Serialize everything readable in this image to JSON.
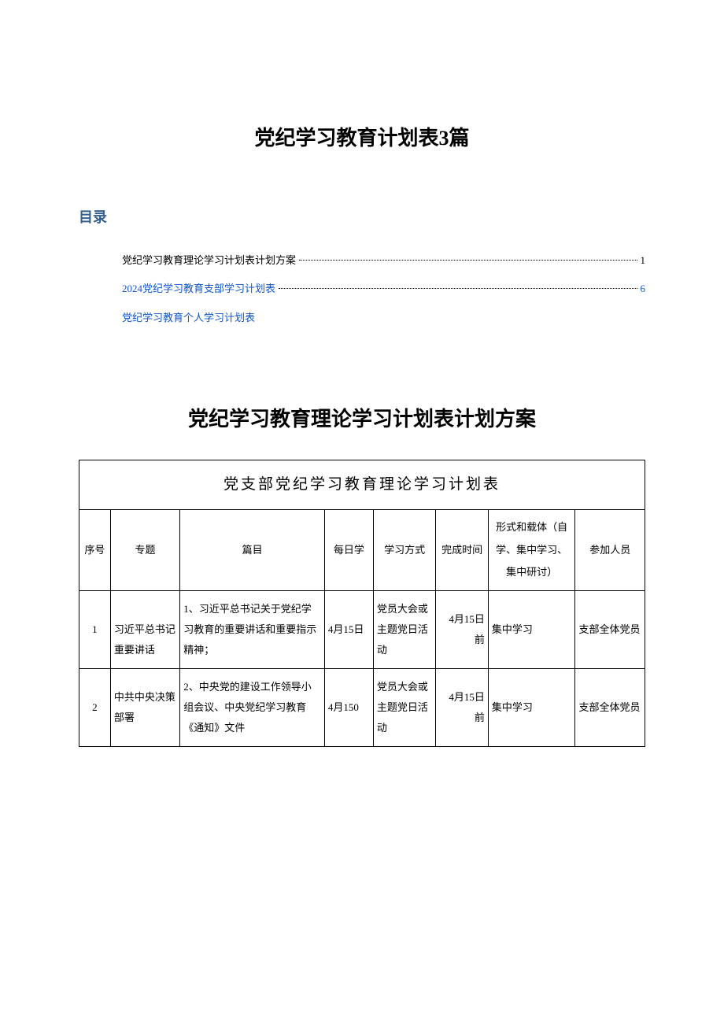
{
  "main_title": "党纪学习教育计划表3篇",
  "toc": {
    "heading": "目录",
    "items": [
      {
        "text": "党纪学习教育理论学习计划表计划方案",
        "page": "1",
        "has_dots": true,
        "color": "black"
      },
      {
        "text": "2024党纪学习教育支部学习计划表",
        "page": "6",
        "has_dots": true,
        "color": "blue"
      },
      {
        "text": "党纪学习教育个人学习计划表",
        "page": "",
        "has_dots": false,
        "color": "blue"
      }
    ]
  },
  "section_title": "党纪学习教育理论学习计划表计划方案",
  "table": {
    "title": "党支部党纪学习教育理论学习计划表",
    "headers": {
      "seq": "序号",
      "topic": "专题",
      "content": "篇目",
      "daily": "每日学",
      "method": "学习方式",
      "deadline": "完成时间",
      "format": "形式和载体（自学、集中学习、集中研讨）",
      "attendee": "参加人员"
    },
    "rows": [
      {
        "seq": "1",
        "topic": "习近平总书记重要讲话",
        "content": "1、习近平总书记关于党纪学习教育的重要讲话和重要指示精神；",
        "daily": "4月15日",
        "method": "党员大会或主题党日活动",
        "deadline": "4月15日前",
        "format": "集中学习",
        "attendee": "支部全体党员"
      },
      {
        "seq": "2",
        "topic": "中共中央决策部署",
        "content": "2、中央党的建设工作领导小组会议、中央党纪学习教育《通知》文件",
        "daily": "4月150",
        "method": "党员大会或主题党日活动",
        "deadline": "4月15日前",
        "format": "集中学习",
        "attendee": "支部全体党员"
      }
    ]
  },
  "colors": {
    "toc_heading": "#365f91",
    "link_blue": "#1155cc",
    "text": "#000000",
    "background": "#ffffff",
    "border": "#000000"
  }
}
